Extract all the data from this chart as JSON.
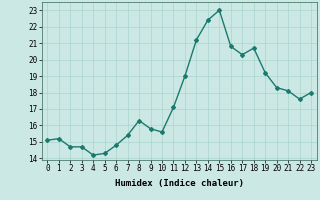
{
  "x": [
    0,
    1,
    2,
    3,
    4,
    5,
    6,
    7,
    8,
    9,
    10,
    11,
    12,
    13,
    14,
    15,
    16,
    17,
    18,
    19,
    20,
    21,
    22,
    23
  ],
  "y": [
    15.1,
    15.2,
    14.7,
    14.7,
    14.2,
    14.3,
    14.8,
    15.4,
    16.3,
    15.8,
    15.6,
    17.1,
    19.0,
    21.2,
    22.4,
    23.0,
    20.8,
    20.3,
    20.7,
    19.2,
    18.3,
    18.1,
    17.6,
    18.0
  ],
  "line_color": "#1a7a6e",
  "marker": "D",
  "markersize": 2.0,
  "linewidth": 1.0,
  "bg_color": "#cce8e4",
  "grid_color": "#aad4cf",
  "xlabel": "Humidex (Indice chaleur)",
  "ylabel": "",
  "title": "",
  "xlim": [
    -0.5,
    23.5
  ],
  "ylim": [
    13.9,
    23.5
  ],
  "yticks": [
    14,
    15,
    16,
    17,
    18,
    19,
    20,
    21,
    22,
    23
  ],
  "xticks": [
    0,
    1,
    2,
    3,
    4,
    5,
    6,
    7,
    8,
    9,
    10,
    11,
    12,
    13,
    14,
    15,
    16,
    17,
    18,
    19,
    20,
    21,
    22,
    23
  ],
  "xlabel_fontsize": 6.5,
  "tick_fontsize": 5.5
}
